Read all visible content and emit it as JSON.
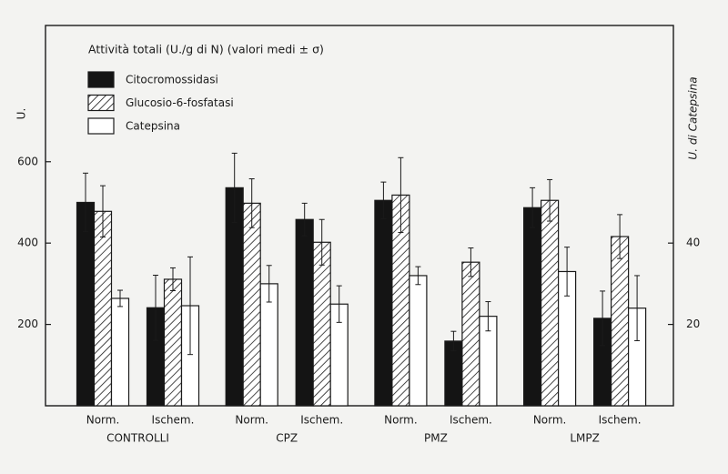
{
  "chart_data": {
    "type": "bar",
    "title": "Attività totali (U./g di N) (valori medi ± σ)",
    "y_label": "U.",
    "y2_label": "U. di Catepsina",
    "categories": [
      "Norm.",
      "Ischem.",
      "Norm.",
      "Ischem.",
      "Norm.",
      "Ischem.",
      "Norm.",
      "Ischem."
    ],
    "groups": [
      "CONTROLLI",
      "CPZ",
      "PMZ",
      "LMPZ"
    ],
    "series": [
      {
        "name": "Citocromossidasi",
        "color": "#141414",
        "hatch": false,
        "values": [
          500,
          241,
          536,
          458,
          505,
          159,
          487,
          215
        ],
        "errors": [
          72,
          80,
          85,
          40,
          45,
          24,
          49,
          67
        ]
      },
      {
        "name": "Glucosio-6-fosfatasi",
        "color": "#ffffff",
        "hatch": true,
        "values": [
          478,
          311,
          498,
          402,
          518,
          353,
          505,
          416
        ],
        "errors": [
          63,
          28,
          60,
          56,
          92,
          35,
          51,
          54
        ]
      },
      {
        "name": "Catepsina",
        "color": "#ffffff",
        "hatch": false,
        "axis": "y2",
        "values": [
          26.4,
          24.6,
          30,
          25,
          32,
          22,
          33,
          24
        ],
        "errors": [
          2,
          12,
          4.5,
          4.5,
          2.2,
          3.6,
          6,
          8
        ]
      }
    ],
    "ylim": [
      0,
      935
    ],
    "yticks": [
      200,
      400,
      600
    ],
    "y2lim": [
      0,
      93.5
    ],
    "y2ticks": [
      20,
      40
    ],
    "legend": "top-left"
  }
}
